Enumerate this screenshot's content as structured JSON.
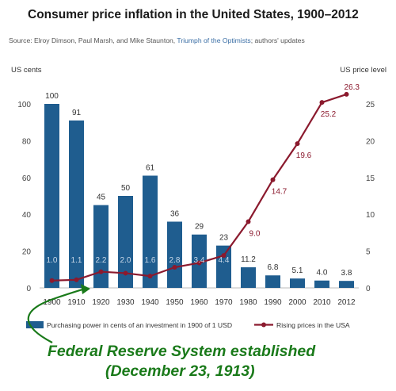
{
  "title": "Consumer price inflation in the United States, 1900–2012",
  "source": {
    "prefix": "Source: Elroy Dimson, Paul Marsh, and Mike Staunton, ",
    "book": "Triumph of the Optimists",
    "suffix": "; authors' updates"
  },
  "annotation": {
    "line1": "Federal Reserve System established",
    "line2": "(December 23, 1913)"
  },
  "colors": {
    "bar": "#1f5d8f",
    "line": "#8b1a2e",
    "bar_label_inside": "#c9d8e8",
    "annotation": "#1a7a1a"
  },
  "chart_data": {
    "type": "bar",
    "categories": [
      "1900",
      "1910",
      "1920",
      "1930",
      "1940",
      "1950",
      "1960",
      "1970",
      "1980",
      "1990",
      "2000",
      "2010",
      "2012"
    ],
    "series": [
      {
        "name": "Purchasing power in cents of an investment in 1900 of 1 USD",
        "type": "bar",
        "axis": "left",
        "values": [
          100,
          91,
          45,
          50,
          61,
          36,
          29,
          23,
          11.2,
          6.8,
          5.1,
          4.0,
          3.8
        ],
        "labels": [
          "100",
          "91",
          "45",
          "50",
          "61",
          "36",
          "29",
          "23",
          "11.2",
          "6.8",
          "5.1",
          "4.0",
          "3.8"
        ]
      },
      {
        "name": "Rising prices in the USA",
        "type": "line",
        "axis": "right",
        "values": [
          1.0,
          1.1,
          2.2,
          2.0,
          1.6,
          2.8,
          3.4,
          4.4,
          9.0,
          14.7,
          19.6,
          25.2,
          26.3
        ],
        "labels": [
          "1.0",
          "1.1",
          "2.2",
          "2.0",
          "1.6",
          "2.8",
          "3.4",
          "4.4",
          "9.0",
          "14.7",
          "19.6",
          "25.2",
          "26.3"
        ]
      }
    ],
    "y_left": {
      "label": "US cents",
      "ylim": [
        0,
        110
      ],
      "ticks": [
        "0",
        "20",
        "40",
        "60",
        "80",
        "100"
      ]
    },
    "y_right": {
      "label": "US price level",
      "ylim": [
        0,
        27.5
      ],
      "ticks": [
        "0",
        "5",
        "10",
        "15",
        "20",
        "25"
      ]
    },
    "grid": false,
    "legend": "bottom"
  }
}
